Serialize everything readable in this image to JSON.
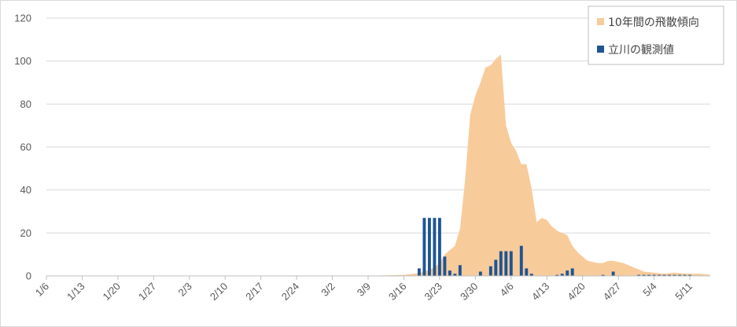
{
  "chart_data": {
    "type": "bar",
    "ylim": [
      0,
      120
    ],
    "y_ticks": [
      0,
      20,
      40,
      60,
      80,
      100,
      120
    ],
    "grid": "horizontal",
    "legend_position": "top-right",
    "x_tick_labels": [
      "1/6",
      "1/13",
      "1/20",
      "1/27",
      "2/3",
      "2/10",
      "2/17",
      "2/24",
      "3/2",
      "3/9",
      "3/16",
      "3/23",
      "3/30",
      "4/6",
      "4/13",
      "4/20",
      "4/27",
      "5/4",
      "5/11"
    ],
    "start_date": "1/6",
    "num_days": 130,
    "colors": {
      "trend": "#f8cb9b",
      "observed": "#1f5594",
      "grid": "#d9d9d9",
      "axis": "#bfbfbf"
    },
    "series": [
      {
        "name": "10年間の飛散傾向",
        "kind": "area",
        "points": [
          [
            "1/6",
            0
          ],
          [
            "3/8",
            0
          ],
          [
            "3/16",
            0.5
          ],
          [
            "3/18",
            1
          ],
          [
            "3/20",
            2
          ],
          [
            "3/22",
            4
          ],
          [
            "3/23",
            6
          ],
          [
            "3/24",
            10
          ],
          [
            "3/26",
            14
          ],
          [
            "3/27",
            22
          ],
          [
            "3/28",
            45
          ],
          [
            "3/29",
            75
          ],
          [
            "3/30",
            84
          ],
          [
            "3/31",
            90
          ],
          [
            "4/1",
            97
          ],
          [
            "4/2",
            98
          ],
          [
            "4/3",
            101
          ],
          [
            "4/4",
            103
          ],
          [
            "4/5",
            70
          ],
          [
            "4/6",
            62
          ],
          [
            "4/7",
            58
          ],
          [
            "4/8",
            52
          ],
          [
            "4/9",
            52
          ],
          [
            "4/10",
            41
          ],
          [
            "4/11",
            25
          ],
          [
            "4/12",
            27
          ],
          [
            "4/13",
            26
          ],
          [
            "4/14",
            23
          ],
          [
            "4/15",
            21
          ],
          [
            "4/17",
            19
          ],
          [
            "4/18",
            14
          ],
          [
            "4/19",
            11
          ],
          [
            "4/21",
            7
          ],
          [
            "4/23",
            6
          ],
          [
            "4/24",
            6
          ],
          [
            "4/25",
            7
          ],
          [
            "4/26",
            7
          ],
          [
            "4/28",
            6
          ],
          [
            "4/30",
            4
          ],
          [
            "5/2",
            2
          ],
          [
            "5/4",
            1.5
          ],
          [
            "5/6",
            1
          ],
          [
            "5/8",
            1.5
          ],
          [
            "5/10",
            1
          ],
          [
            "5/13",
            1
          ],
          [
            "5/15",
            0.5
          ]
        ]
      },
      {
        "name": "立川の観測値",
        "kind": "bar",
        "points": [
          [
            "3/19",
            3.5
          ],
          [
            "3/20",
            27
          ],
          [
            "3/21",
            27
          ],
          [
            "3/22",
            27
          ],
          [
            "3/23",
            27
          ],
          [
            "3/24",
            9
          ],
          [
            "3/25",
            2.5
          ],
          [
            "3/26",
            1
          ],
          [
            "3/27",
            5
          ],
          [
            "3/31",
            2
          ],
          [
            "4/2",
            4.5
          ],
          [
            "4/3",
            7.5
          ],
          [
            "4/4",
            11.5
          ],
          [
            "4/5",
            11.5
          ],
          [
            "4/6",
            11.5
          ],
          [
            "4/8",
            14
          ],
          [
            "4/9",
            3.5
          ],
          [
            "4/10",
            1
          ],
          [
            "4/15",
            0.5
          ],
          [
            "4/16",
            1
          ],
          [
            "4/17",
            2.5
          ],
          [
            "4/18",
            3.5
          ],
          [
            "4/24",
            0.5
          ],
          [
            "4/26",
            2
          ],
          [
            "5/1",
            0.5
          ],
          [
            "5/2",
            0.5
          ],
          [
            "5/3",
            0.5
          ],
          [
            "5/4",
            0.5
          ],
          [
            "5/5",
            0.5
          ],
          [
            "5/6",
            0.5
          ],
          [
            "5/7",
            0.5
          ],
          [
            "5/8",
            0.5
          ],
          [
            "5/9",
            0.5
          ],
          [
            "5/10",
            0.5
          ],
          [
            "5/11",
            0.5
          ]
        ]
      }
    ]
  }
}
